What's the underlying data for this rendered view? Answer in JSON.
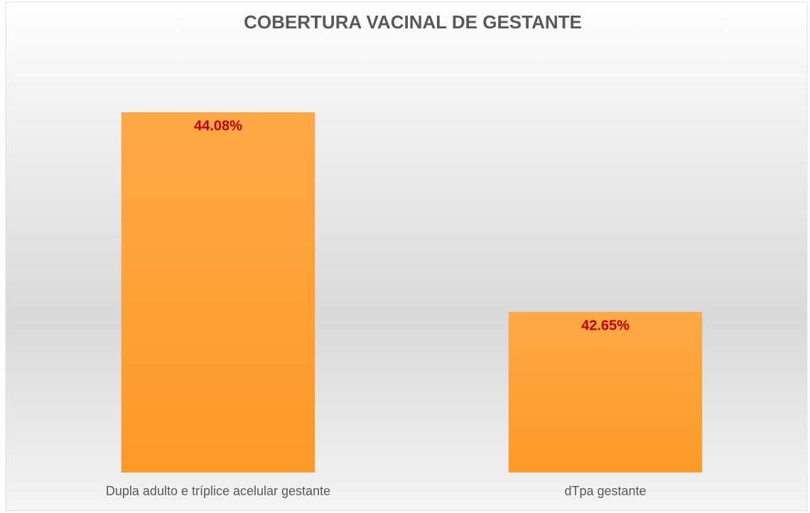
{
  "chart_data": {
    "type": "bar",
    "title": "COBERTURA VACINAL DE GESTANTE",
    "categories": [
      "Dupla adulto e tríplice acelular gestante",
      "dTpa gestante"
    ],
    "values": [
      44.08,
      42.65
    ],
    "value_labels": [
      "44.08%",
      "42.65%"
    ],
    "color": "#fe9a26",
    "label_color": "#c00000",
    "ylim": [
      41.5,
      44.5
    ]
  }
}
